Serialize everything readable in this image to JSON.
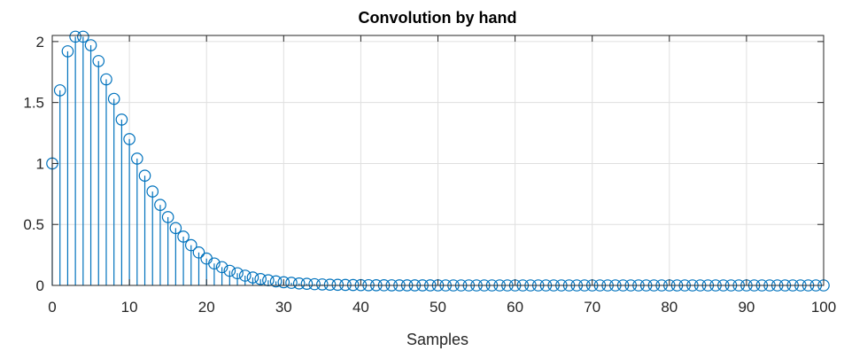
{
  "chart_data": {
    "type": "stem",
    "title": "Convolution by hand",
    "xlabel": "Samples",
    "ylabel": "",
    "xlim": [
      0,
      100
    ],
    "ylim": [
      0,
      2.05
    ],
    "xticks": [
      0,
      10,
      20,
      30,
      40,
      50,
      60,
      70,
      80,
      90,
      100
    ],
    "xtick_labels": [
      "0",
      "10",
      "20",
      "30",
      "40",
      "50",
      "60",
      "70",
      "80",
      "90",
      "100"
    ],
    "yticks": [
      0,
      0.5,
      1,
      1.5,
      2
    ],
    "ytick_labels": [
      "0",
      "0.5",
      "1",
      "1.5",
      "2"
    ],
    "grid": true,
    "marker": "circle",
    "colors": {
      "series": "#0072BD",
      "grid": "#dfdfdf",
      "axes": "#262626"
    },
    "x": [
      0,
      1,
      2,
      3,
      4,
      5,
      6,
      7,
      8,
      9,
      10,
      11,
      12,
      13,
      14,
      15,
      16,
      17,
      18,
      19,
      20,
      21,
      22,
      23,
      24,
      25,
      26,
      27,
      28,
      29,
      30,
      31,
      32,
      33,
      34,
      35,
      36,
      37,
      38,
      39,
      40,
      41,
      42,
      43,
      44,
      45,
      46,
      47,
      48,
      49,
      50,
      51,
      52,
      53,
      54,
      55,
      56,
      57,
      58,
      59,
      60,
      61,
      62,
      63,
      64,
      65,
      66,
      67,
      68,
      69,
      70,
      71,
      72,
      73,
      74,
      75,
      76,
      77,
      78,
      79,
      80,
      81,
      82,
      83,
      84,
      85,
      86,
      87,
      88,
      89,
      90,
      91,
      92,
      93,
      94,
      95,
      96,
      97,
      98,
      99,
      100
    ],
    "values": [
      1.0,
      1.6,
      1.92,
      2.04,
      2.04,
      1.97,
      1.84,
      1.69,
      1.53,
      1.36,
      1.2,
      1.04,
      0.9,
      0.77,
      0.66,
      0.56,
      0.47,
      0.4,
      0.33,
      0.27,
      0.22,
      0.18,
      0.15,
      0.12,
      0.1,
      0.08,
      0.065,
      0.052,
      0.042,
      0.033,
      0.026,
      0.021,
      0.016,
      0.013,
      0.01,
      0.008,
      0.006,
      0.005,
      0.004,
      0.003,
      0.002,
      0.0016,
      0.0012,
      0.001,
      0.0008,
      0.0006,
      0.0005,
      0.0004,
      0.0003,
      0.0002,
      0.0002,
      0,
      0,
      0,
      0,
      0,
      0,
      0,
      0,
      0,
      0,
      0,
      0,
      0,
      0,
      0,
      0,
      0,
      0,
      0,
      0,
      0,
      0,
      0,
      0,
      0,
      0,
      0,
      0,
      0,
      0,
      0,
      0,
      0,
      0,
      0,
      0,
      0,
      0,
      0,
      0,
      0,
      0,
      0,
      0,
      0,
      0,
      0,
      0,
      0,
      0
    ]
  }
}
